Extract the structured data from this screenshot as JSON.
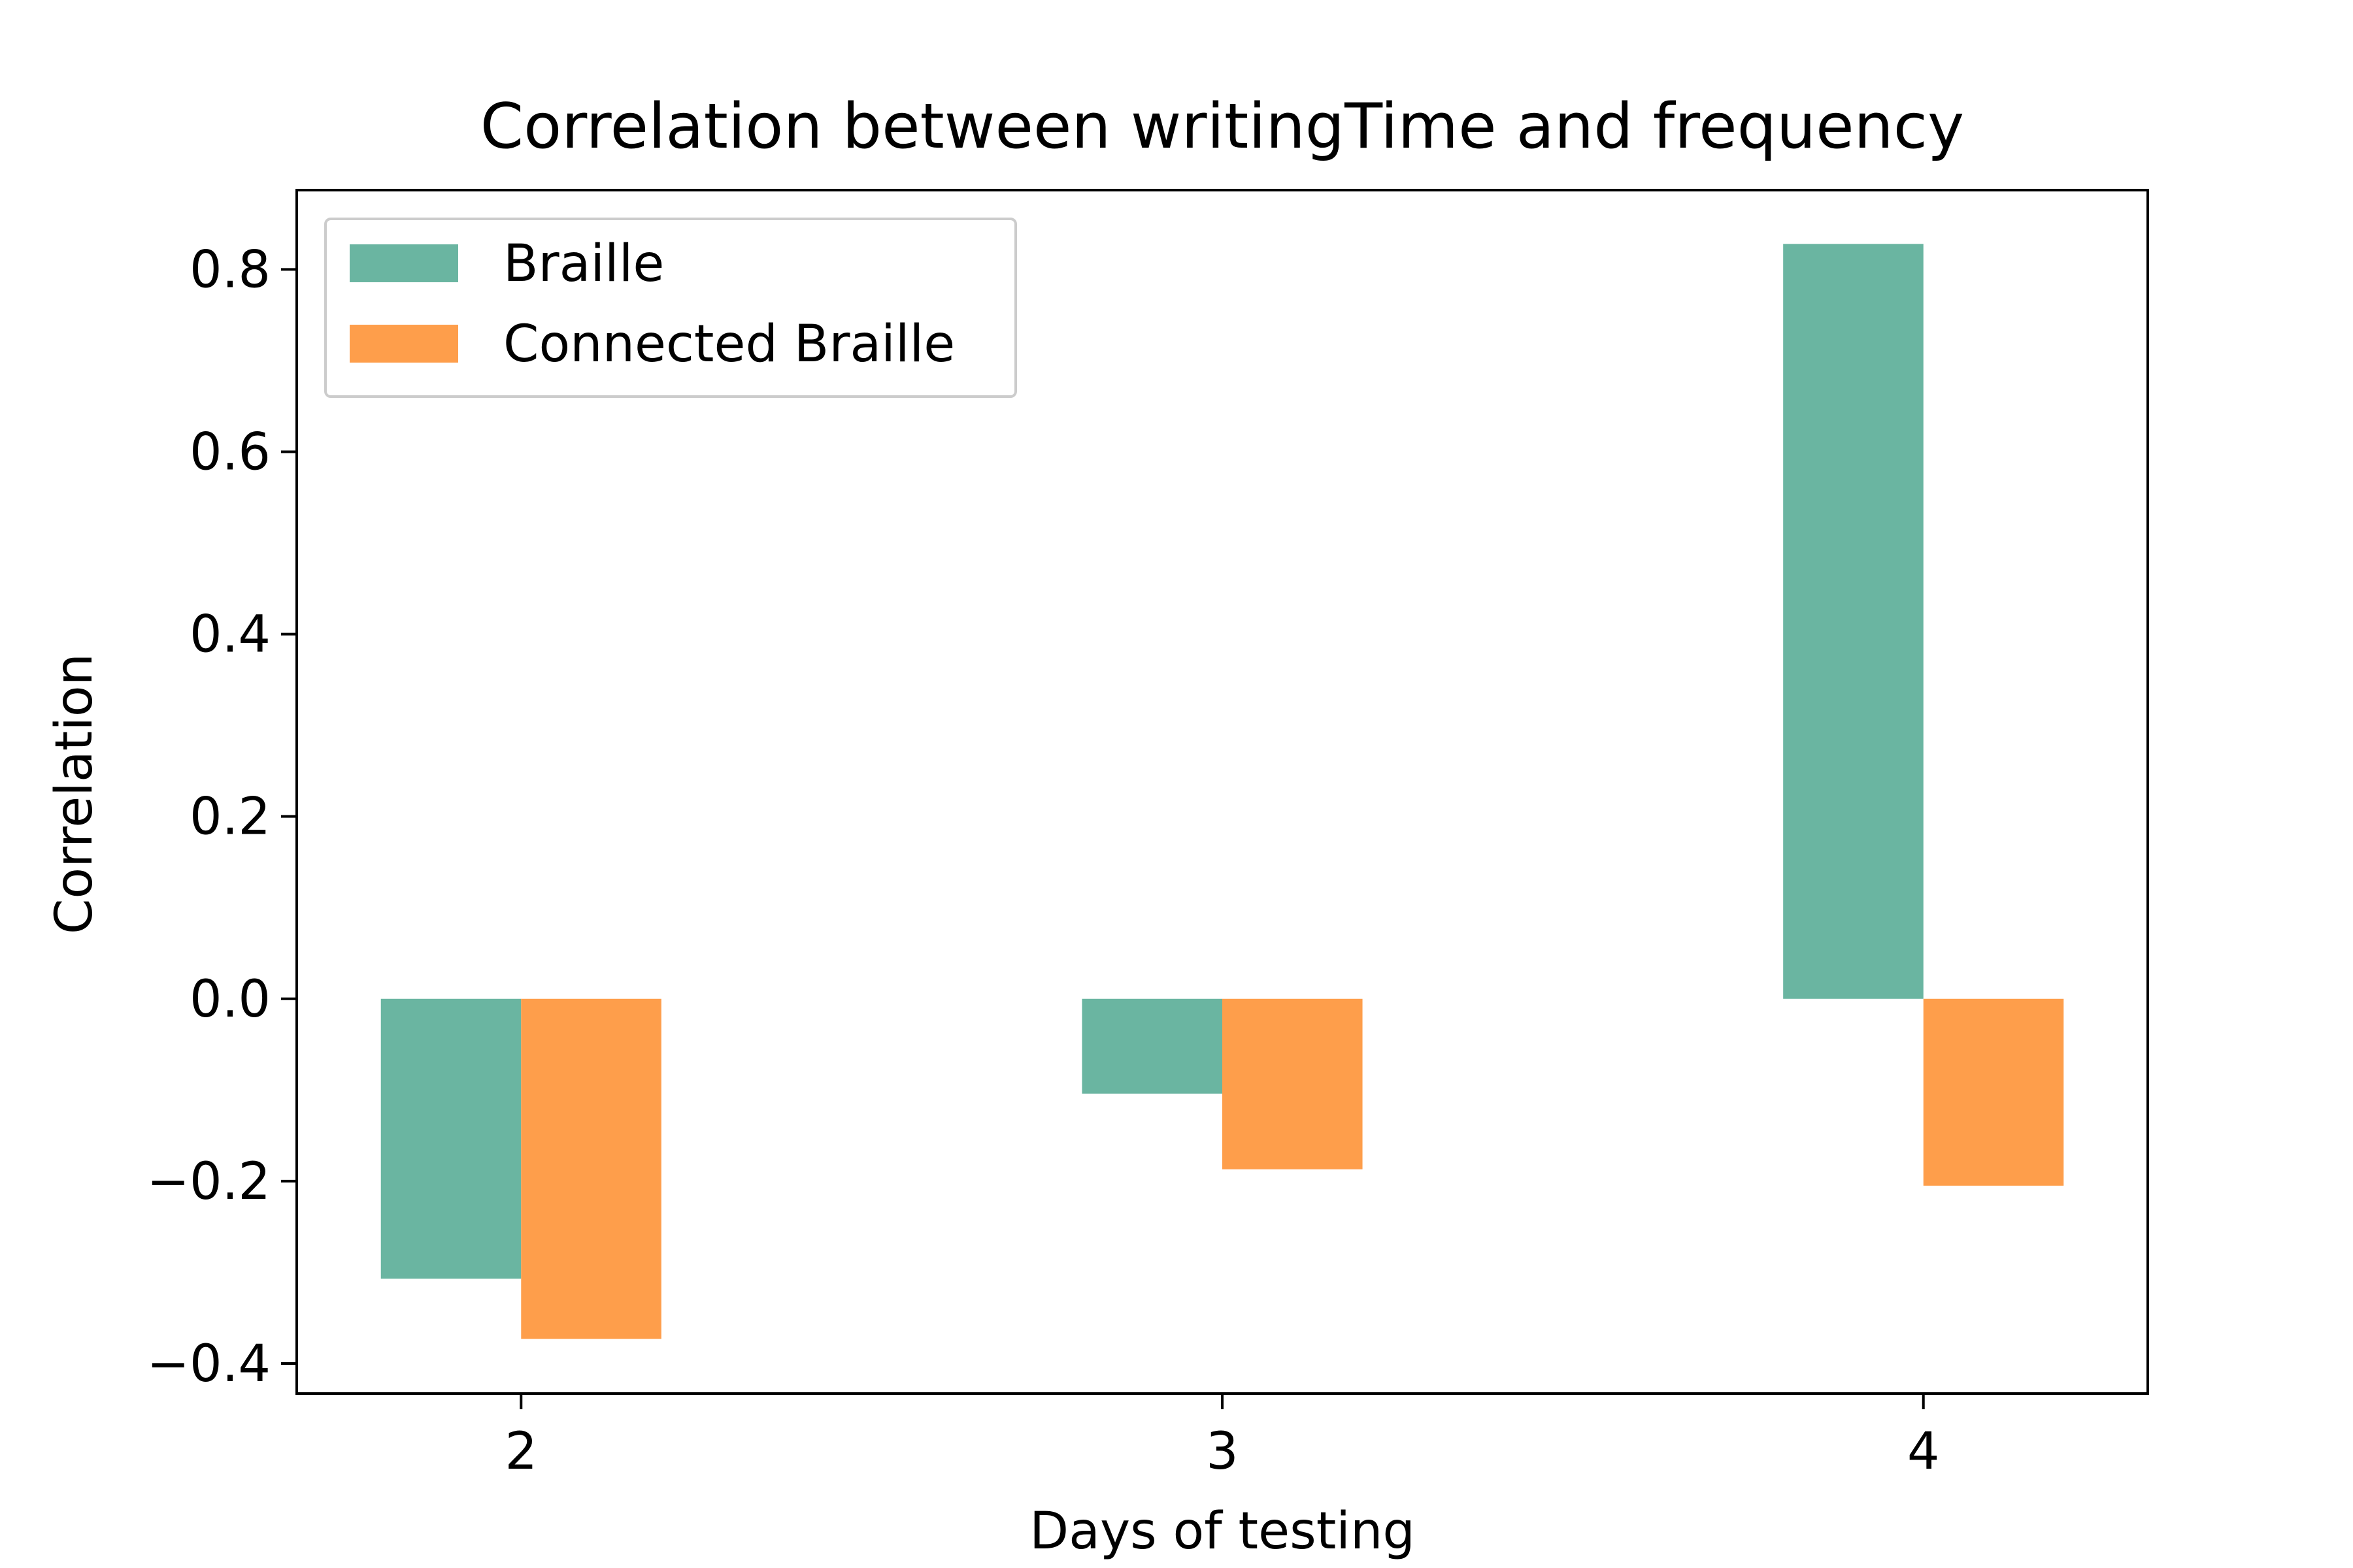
{
  "chart_data": {
    "type": "bar",
    "title": "Correlation between writingTime and frequency",
    "xlabel": "Days of testing",
    "ylabel": "Correlation",
    "categories": [
      "2",
      "3",
      "4"
    ],
    "series": [
      {
        "name": "Braille",
        "color": "#6ab5a1",
        "values": [
          -0.307,
          -0.104,
          0.828
        ]
      },
      {
        "name": "Connected Braille",
        "color": "#fe9e4b",
        "values": [
          -0.373,
          -0.187,
          -0.205
        ]
      }
    ],
    "yticks": [
      -0.4,
      -0.2,
      0.0,
      0.2,
      0.4,
      0.6,
      0.8
    ],
    "ytick_labels": [
      "−0.4",
      "−0.2",
      "0.0",
      "0.2",
      "0.4",
      "0.6",
      "0.8"
    ],
    "ylim": [
      -0.433,
      0.887
    ],
    "xlim": [
      1.68,
      4.32
    ],
    "grid": false,
    "legend_position": "upper left"
  }
}
